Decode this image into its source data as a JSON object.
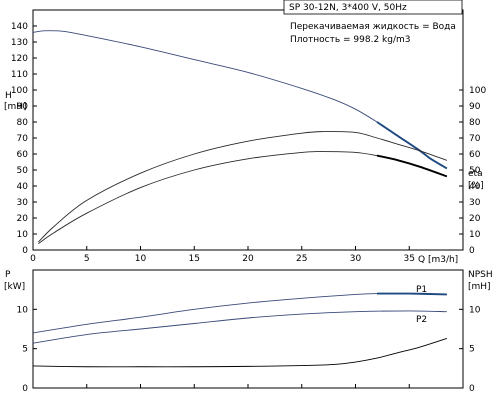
{
  "chart_data": [
    {
      "type": "line",
      "title": "SP 30-12N, 3*400 V, 50Hz",
      "notes": [
        "Перекачиваемая жидкость = Вода",
        "Плотность = 998.2 kg/m3"
      ],
      "xlabel": "Q [m3/h]",
      "xlim": [
        0,
        40
      ],
      "x_ticks": [
        0,
        5,
        10,
        15,
        20,
        25,
        30,
        35,
        40
      ],
      "x_ticks_labeled": [
        0,
        5,
        10,
        15,
        20,
        25,
        30,
        35
      ],
      "ylabel": [
        "H",
        "[mH]"
      ],
      "ylim": [
        0,
        150
      ],
      "y_ticks": [
        0,
        10,
        20,
        30,
        40,
        50,
        60,
        70,
        80,
        90,
        100,
        110,
        120,
        130,
        140
      ],
      "y2label": [
        "eta",
        "[%]"
      ],
      "y2lim": [
        0,
        150
      ],
      "y2_ticks": [
        0,
        10,
        20,
        30,
        40,
        50,
        60,
        70,
        80,
        90,
        100
      ],
      "grid": false,
      "series": [
        {
          "axis": "left",
          "color": "#3a4a7a",
          "highlight_color": "#1f4a80",
          "highlight_from": 32,
          "x": [
            0,
            1,
            2,
            3,
            5,
            10,
            15,
            20,
            25,
            28,
            30,
            32,
            34,
            36,
            37,
            38.5
          ],
          "values": [
            136,
            137,
            137,
            136.5,
            134,
            127,
            119,
            111,
            101,
            94,
            88,
            80,
            71,
            62,
            57,
            51
          ]
        },
        {
          "axis": "right",
          "color": "#2a2a2a",
          "x": [
            0.5,
            2,
            5,
            10,
            15,
            20,
            25,
            27,
            30,
            32,
            34,
            36,
            38.5
          ],
          "values": [
            5,
            15,
            31,
            48,
            60,
            68,
            73,
            74,
            73.5,
            70,
            66,
            62,
            56
          ]
        },
        {
          "axis": "left",
          "color": "#2a2a2a",
          "highlight_color": "#000000",
          "highlight_from": 32,
          "x": [
            0.5,
            2,
            5,
            10,
            15,
            20,
            25,
            27,
            30,
            32,
            34,
            36,
            38.5
          ],
          "values": [
            4,
            11,
            23,
            39,
            50,
            57,
            61,
            61.5,
            61,
            59,
            56,
            52,
            46
          ]
        }
      ]
    },
    {
      "type": "line",
      "xlim": [
        0,
        40
      ],
      "x_ticks": [
        0,
        5,
        10,
        15,
        20,
        25,
        30,
        35,
        40
      ],
      "ylabel": [
        "P",
        "[kW]"
      ],
      "ylim": [
        0,
        15
      ],
      "y_ticks": [
        0,
        5,
        10
      ],
      "y2label": [
        "NPSH",
        "[mH]"
      ],
      "y2lim": [
        0,
        15
      ],
      "y2_ticks": [
        0,
        5,
        10
      ],
      "grid": false,
      "series": [
        {
          "name": "P1",
          "color": "#3a4a7a",
          "highlight_color": "#1f4a80",
          "highlight_from": 32,
          "x": [
            0,
            5,
            10,
            15,
            20,
            25,
            30,
            32,
            35,
            38.5
          ],
          "values": [
            7.0,
            8.1,
            9.0,
            10.0,
            10.8,
            11.4,
            11.9,
            12.0,
            12.0,
            11.9
          ]
        },
        {
          "name": "P2",
          "color": "#3a4a7a",
          "x": [
            0,
            5,
            10,
            15,
            20,
            25,
            30,
            35,
            38.5
          ],
          "values": [
            5.7,
            6.8,
            7.5,
            8.2,
            8.9,
            9.4,
            9.7,
            9.8,
            9.7
          ]
        },
        {
          "axis": "right",
          "color": "#000000",
          "x": [
            0,
            5,
            10,
            15,
            20,
            25,
            28,
            30,
            32,
            34,
            36,
            38.5
          ],
          "values": [
            2.8,
            2.7,
            2.7,
            2.7,
            2.75,
            2.85,
            3.0,
            3.3,
            3.8,
            4.5,
            5.2,
            6.3
          ]
        }
      ]
    }
  ]
}
